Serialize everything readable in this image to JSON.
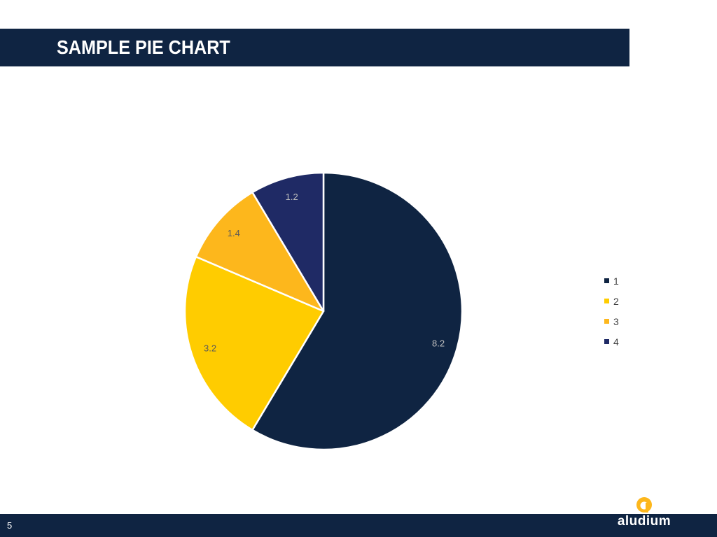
{
  "slide": {
    "title": "SAMPLE PIE CHART",
    "page_number": "5",
    "logo_text": "aludium"
  },
  "colors": {
    "navy": "#0f2442",
    "yellow": "#ffcc00",
    "amber": "#fdb71c",
    "indigo": "#1f2a65",
    "label_light": "#bfbfbf",
    "label_dark": "#595959"
  },
  "chart_data": {
    "type": "pie",
    "categories": [
      "1",
      "2",
      "3",
      "4"
    ],
    "values": [
      8.2,
      3.2,
      1.4,
      1.2
    ],
    "data_labels": [
      "8.2",
      "3.2",
      "1.4",
      "1.2"
    ],
    "colors": [
      "#0f2442",
      "#ffcc00",
      "#fdb71c",
      "#1f2a65"
    ],
    "legend": [
      "1",
      "2",
      "3",
      "4"
    ],
    "legend_position": "right",
    "start_angle": "top",
    "direction": "clockwise"
  }
}
